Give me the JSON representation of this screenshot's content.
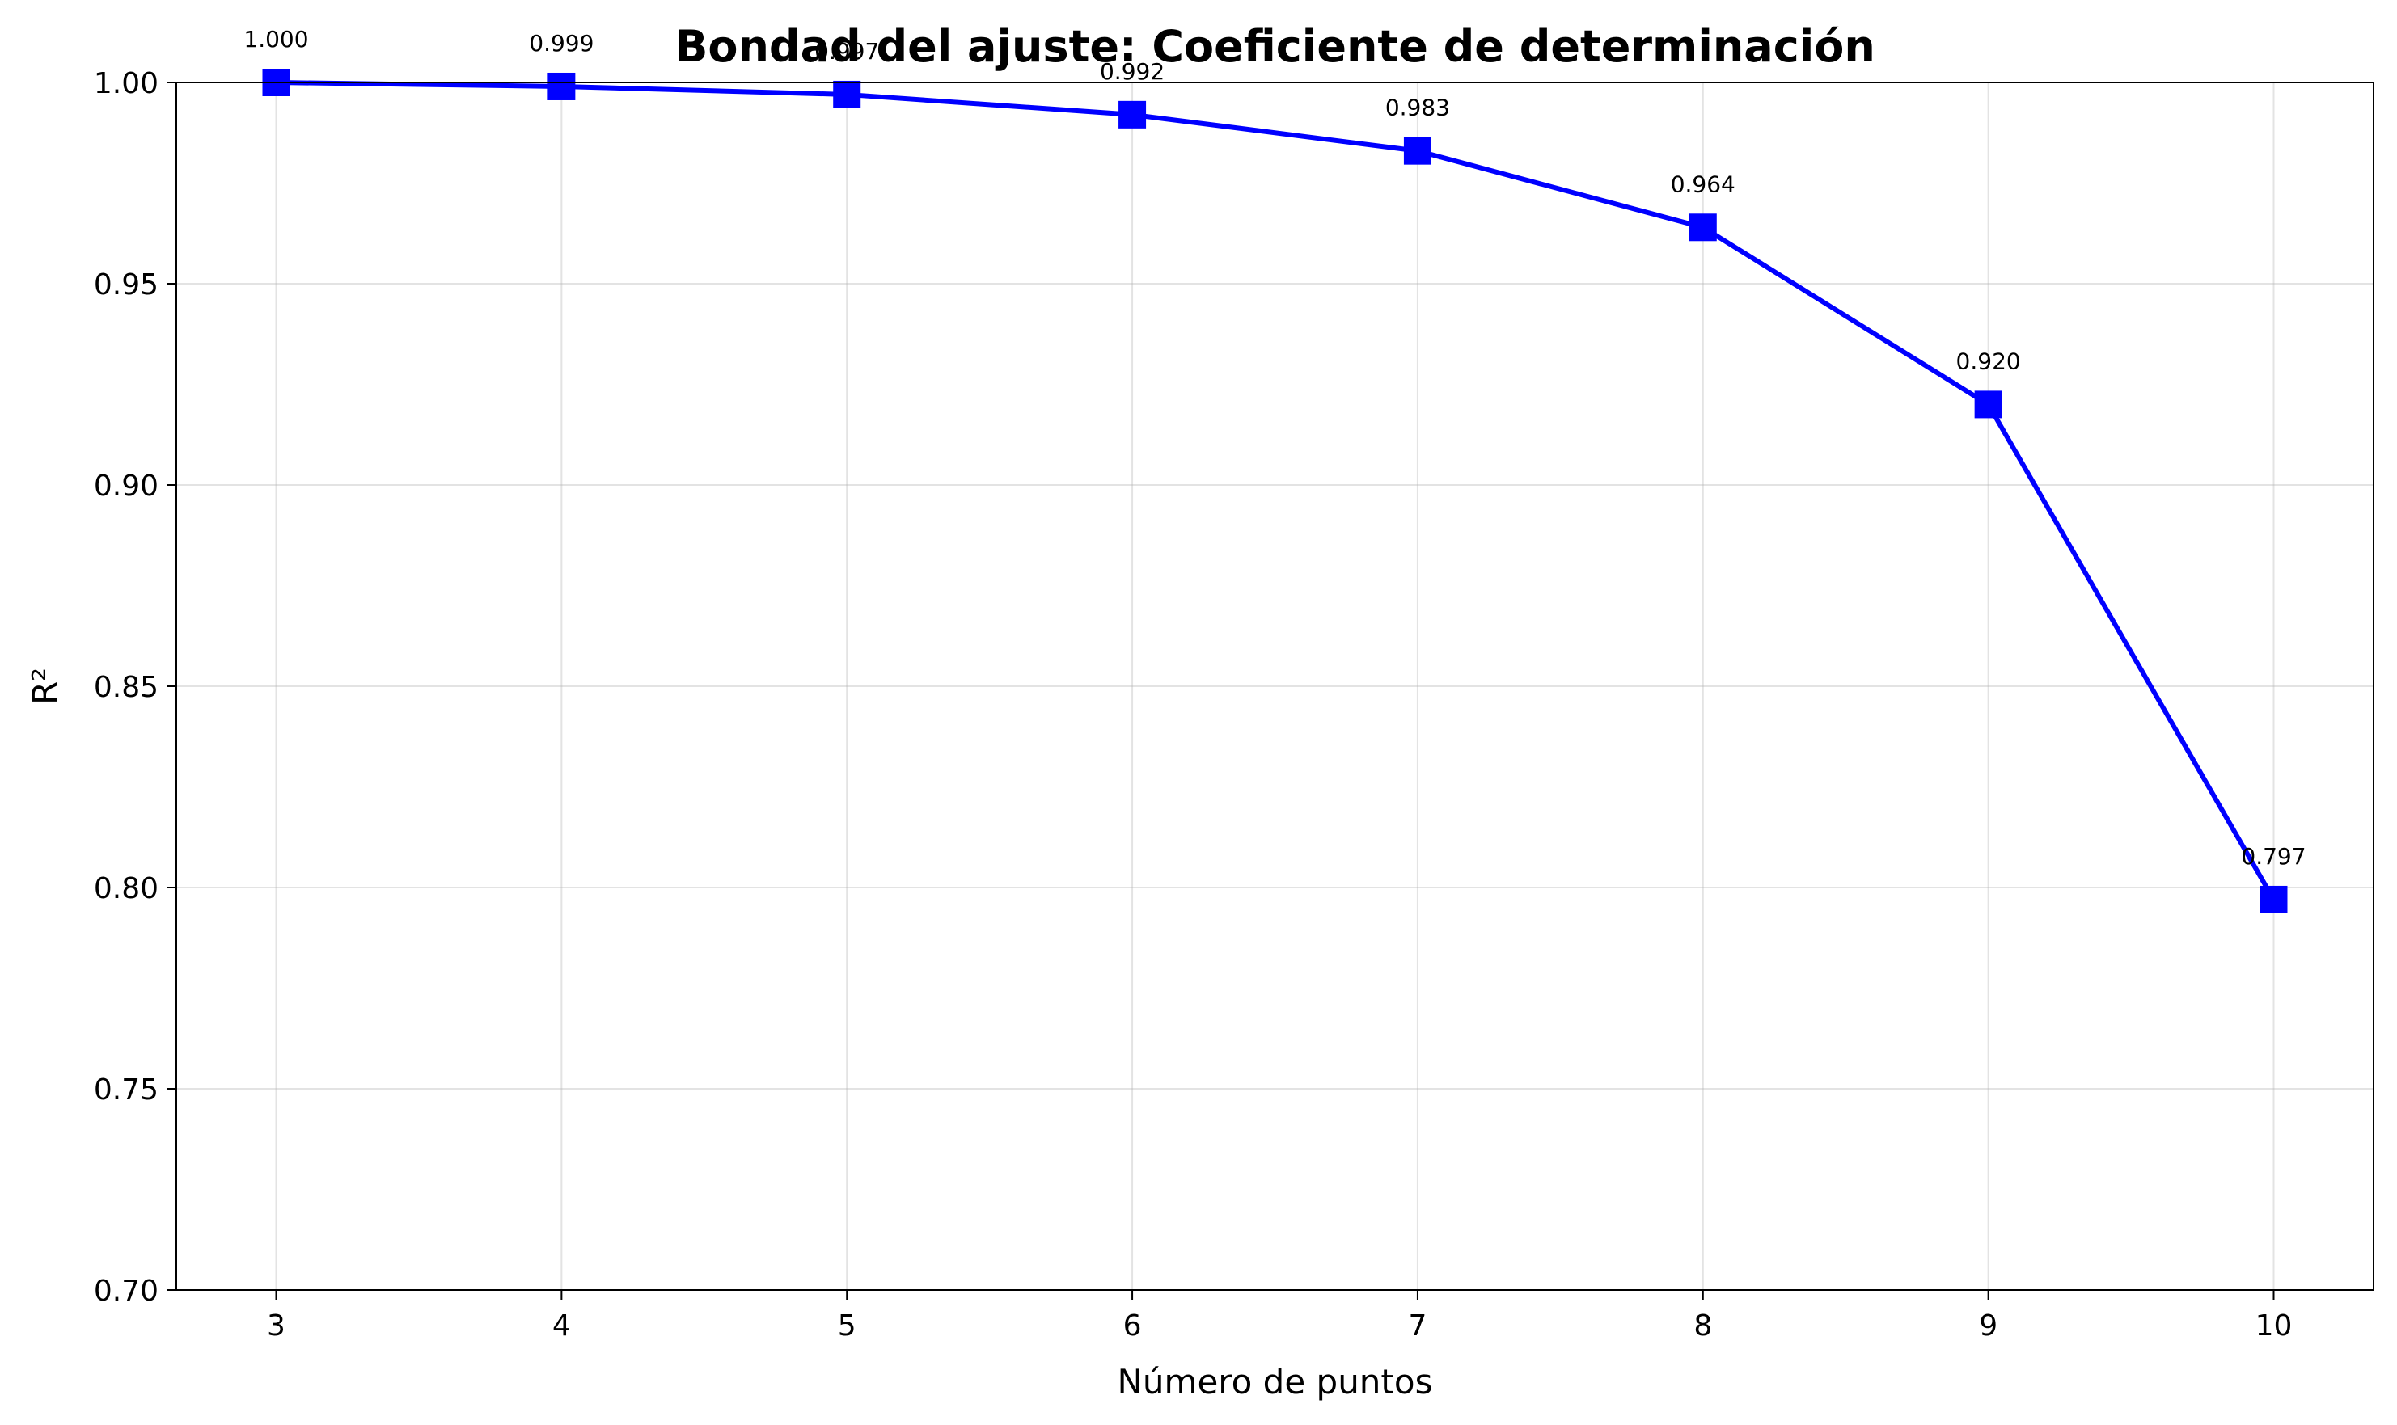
{
  "chart_data": {
    "type": "line",
    "title": "Bondad del ajuste: Coeficiente de determinación",
    "xlabel": "Número de puntos",
    "ylabel": "R²",
    "x": [
      3,
      4,
      5,
      6,
      7,
      8,
      9,
      10
    ],
    "series": [
      {
        "values": [
          1.0,
          0.999,
          0.997,
          0.992,
          0.983,
          0.964,
          0.92,
          0.797
        ],
        "labels": [
          "1.000",
          "0.999",
          "0.997",
          "0.992",
          "0.983",
          "0.964",
          "0.920",
          "0.797"
        ],
        "color": "#0000ff",
        "marker": "square"
      }
    ],
    "xlim": [
      2.65,
      10.35
    ],
    "ylim": [
      0.7,
      1.0
    ],
    "xticks": [
      "3",
      "4",
      "5",
      "6",
      "7",
      "8",
      "9",
      "10"
    ],
    "yticks": [
      "0.70",
      "0.75",
      "0.80",
      "0.85",
      "0.90",
      "0.95",
      "1.00"
    ],
    "grid": true
  }
}
